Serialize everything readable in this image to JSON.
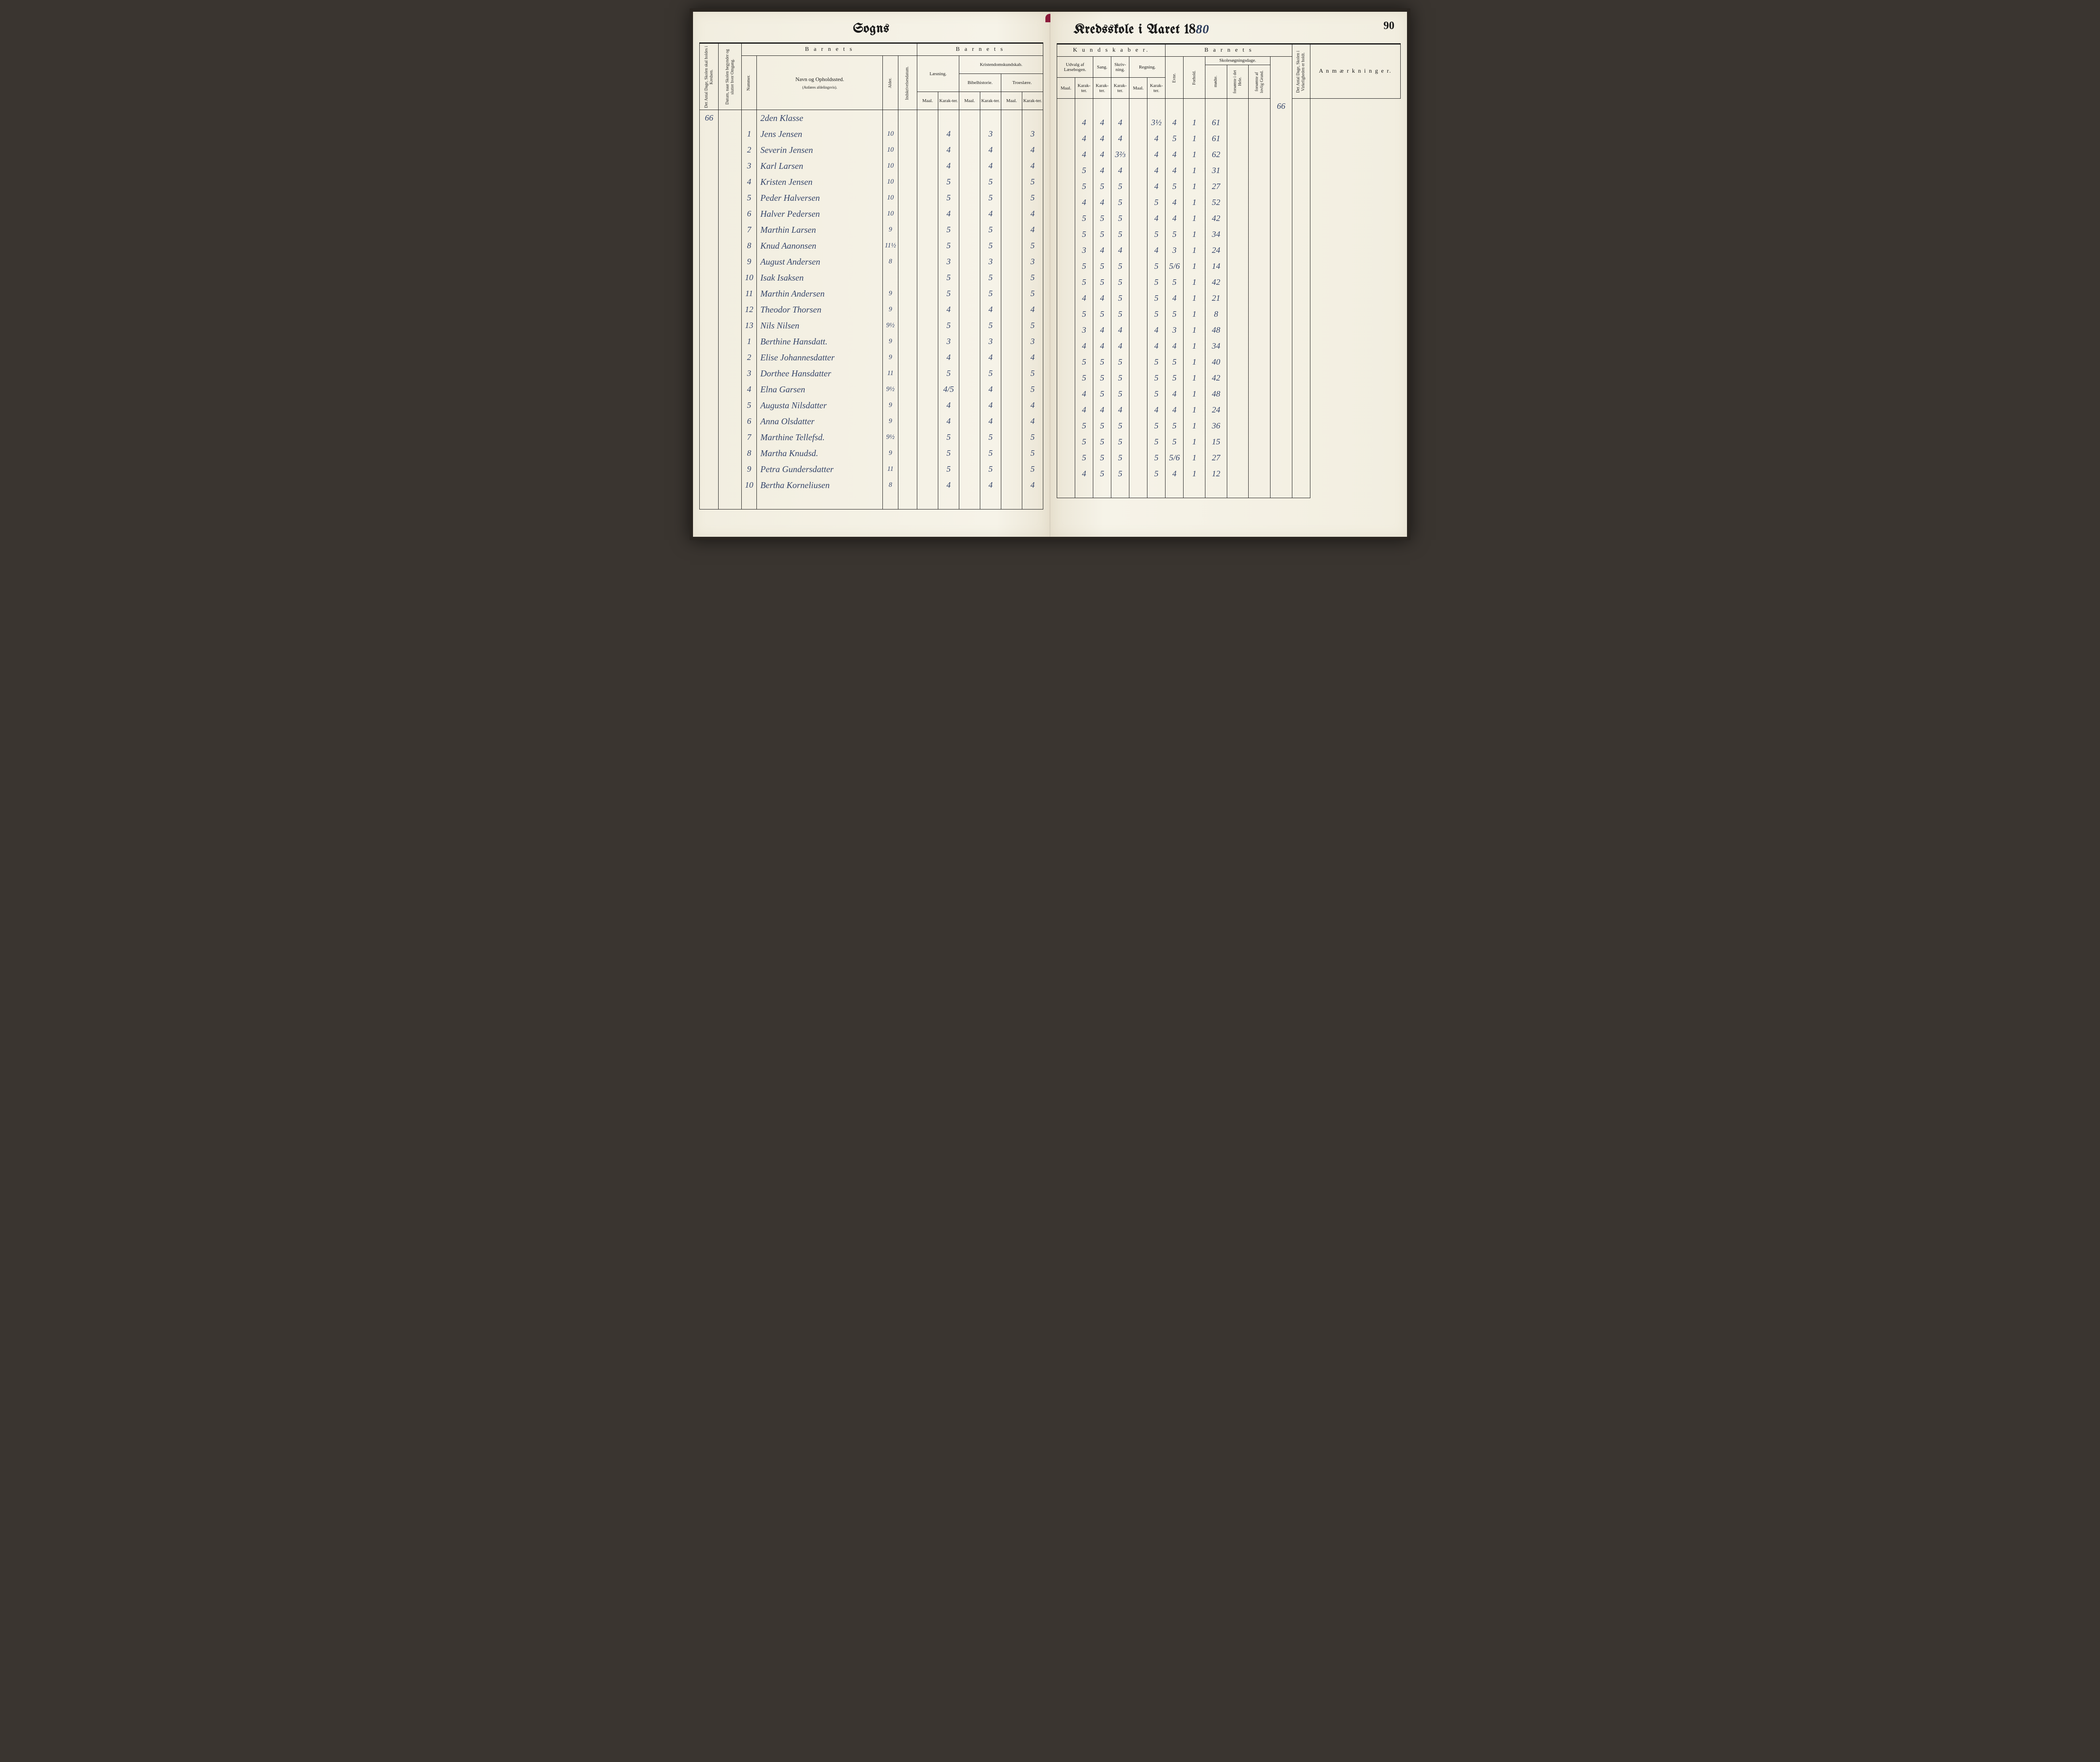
{
  "page_number": "90",
  "left_title": "Sogns",
  "right_title_prefix": "Kredsskole i Aaret 18",
  "right_title_year": "80",
  "headers": {
    "barnets": "B a r n e t s",
    "kundskaber": "K u n d s k a b e r.",
    "antal_dage": "Det Antal Dage, Skolen skal holdes i Kredsen.",
    "datum": "Datum, naar Skolen begynder og slutter hver Omgang.",
    "nummer": "Nummer.",
    "navn": "Navn og Opholdssted.",
    "navn_sub": "(Anføres afdelingsvis).",
    "alder": "Alder.",
    "indskrivelsesdatum": "Indskrivelsesdatum.",
    "laesning": "Læsning.",
    "kristendom": "Kristendomskundskab.",
    "bibelhistorie": "Bibelhistorie.",
    "troeslaere": "Troeslære.",
    "maal": "Maal.",
    "karakter": "Karak-ter.",
    "udvalg": "Udvalg af Læsebogen.",
    "sang": "Sang.",
    "skrivning": "Skriv-ning.",
    "regning": "Regning.",
    "evne": "Evne.",
    "forhold": "Forhold.",
    "skolesogningsdage": "Skolesøgningsdage.",
    "modte": "mødte.",
    "forsomte_hele": "forsømte i det Hele.",
    "forsomte_lovlig": "forsømte af lovlig Grund.",
    "antal_dage_holdt": "Det Antal Dage, Skolen i Virkeligheden er holdt.",
    "anmaerkninger": "A n m æ r k n i n g e r."
  },
  "klasse_header": "2den Klasse",
  "antal_dage_val": "66",
  "holdt_val": "66",
  "rows": [
    {
      "num": "1",
      "name": "Jens Jensen",
      "age": "10",
      "laes_m": "",
      "laes_k": "4",
      "bib_m": "",
      "bib_k": "3",
      "tro_m": "",
      "tro_k": "3",
      "udv_m": "",
      "udv_k": "4",
      "sang": "4",
      "skr": "4",
      "reg_m": "",
      "reg_k": "3½",
      "evne": "4",
      "forhold": "1",
      "modte": "61",
      "fors1": "",
      "fors2": ""
    },
    {
      "num": "2",
      "name": "Severin Jensen",
      "age": "10",
      "laes_m": "",
      "laes_k": "4",
      "bib_m": "",
      "bib_k": "4",
      "tro_m": "",
      "tro_k": "4",
      "udv_m": "",
      "udv_k": "4",
      "sang": "4",
      "skr": "4",
      "reg_m": "",
      "reg_k": "4",
      "evne": "5",
      "forhold": "1",
      "modte": "61",
      "fors1": "",
      "fors2": ""
    },
    {
      "num": "3",
      "name": "Karl Larsen",
      "age": "10",
      "laes_m": "",
      "laes_k": "4",
      "bib_m": "",
      "bib_k": "4",
      "tro_m": "",
      "tro_k": "4",
      "udv_m": "",
      "udv_k": "4",
      "sang": "4",
      "skr": "3⅔",
      "reg_m": "",
      "reg_k": "4",
      "evne": "4",
      "forhold": "1",
      "modte": "62",
      "fors1": "",
      "fors2": ""
    },
    {
      "num": "4",
      "name": "Kristen Jensen",
      "age": "10",
      "laes_m": "",
      "laes_k": "5",
      "bib_m": "",
      "bib_k": "5",
      "tro_m": "",
      "tro_k": "5",
      "udv_m": "",
      "udv_k": "5",
      "sang": "4",
      "skr": "4",
      "reg_m": "",
      "reg_k": "4",
      "evne": "4",
      "forhold": "1",
      "modte": "31",
      "fors1": "",
      "fors2": ""
    },
    {
      "num": "5",
      "name": "Peder Halversen",
      "age": "10",
      "laes_m": "",
      "laes_k": "5",
      "bib_m": "",
      "bib_k": "5",
      "tro_m": "",
      "tro_k": "5",
      "udv_m": "",
      "udv_k": "5",
      "sang": "5",
      "skr": "5",
      "reg_m": "",
      "reg_k": "4",
      "evne": "5",
      "forhold": "1",
      "modte": "27",
      "fors1": "",
      "fors2": ""
    },
    {
      "num": "6",
      "name": "Halver Pedersen",
      "age": "10",
      "laes_m": "",
      "laes_k": "4",
      "bib_m": "",
      "bib_k": "4",
      "tro_m": "",
      "tro_k": "4",
      "udv_m": "",
      "udv_k": "4",
      "sang": "4",
      "skr": "5",
      "reg_m": "",
      "reg_k": "5",
      "evne": "4",
      "forhold": "1",
      "modte": "52",
      "fors1": "",
      "fors2": ""
    },
    {
      "num": "7",
      "name": "Marthin Larsen",
      "age": "9",
      "laes_m": "",
      "laes_k": "5",
      "bib_m": "",
      "bib_k": "5",
      "tro_m": "",
      "tro_k": "4",
      "udv_m": "",
      "udv_k": "5",
      "sang": "5",
      "skr": "5",
      "reg_m": "",
      "reg_k": "4",
      "evne": "4",
      "forhold": "1",
      "modte": "42",
      "fors1": "",
      "fors2": ""
    },
    {
      "num": "8",
      "name": "Knud Aanonsen",
      "age": "11½",
      "laes_m": "",
      "laes_k": "5",
      "bib_m": "",
      "bib_k": "5",
      "tro_m": "",
      "tro_k": "5",
      "udv_m": "",
      "udv_k": "5",
      "sang": "5",
      "skr": "5",
      "reg_m": "",
      "reg_k": "5",
      "evne": "5",
      "forhold": "1",
      "modte": "34",
      "fors1": "",
      "fors2": ""
    },
    {
      "num": "9",
      "name": "August Andersen",
      "age": "8",
      "laes_m": "",
      "laes_k": "3",
      "bib_m": "",
      "bib_k": "3",
      "tro_m": "",
      "tro_k": "3",
      "udv_m": "",
      "udv_k": "3",
      "sang": "4",
      "skr": "4",
      "reg_m": "",
      "reg_k": "4",
      "evne": "3",
      "forhold": "1",
      "modte": "24",
      "fors1": "",
      "fors2": ""
    },
    {
      "num": "10",
      "name": "Isak Isaksen",
      "age": "",
      "laes_m": "",
      "laes_k": "5",
      "bib_m": "",
      "bib_k": "5",
      "tro_m": "",
      "tro_k": "5",
      "udv_m": "",
      "udv_k": "5",
      "sang": "5",
      "skr": "5",
      "reg_m": "",
      "reg_k": "5",
      "evne": "5/6",
      "forhold": "1",
      "modte": "14",
      "fors1": "",
      "fors2": ""
    },
    {
      "num": "11",
      "name": "Marthin Andersen",
      "age": "9",
      "laes_m": "",
      "laes_k": "5",
      "bib_m": "",
      "bib_k": "5",
      "tro_m": "",
      "tro_k": "5",
      "udv_m": "",
      "udv_k": "5",
      "sang": "5",
      "skr": "5",
      "reg_m": "",
      "reg_k": "5",
      "evne": "5",
      "forhold": "1",
      "modte": "42",
      "fors1": "",
      "fors2": ""
    },
    {
      "num": "12",
      "name": "Theodor Thorsen",
      "age": "9",
      "laes_m": "",
      "laes_k": "4",
      "bib_m": "",
      "bib_k": "4",
      "tro_m": "",
      "tro_k": "4",
      "udv_m": "",
      "udv_k": "4",
      "sang": "4",
      "skr": "5",
      "reg_m": "",
      "reg_k": "5",
      "evne": "4",
      "forhold": "1",
      "modte": "21",
      "fors1": "",
      "fors2": ""
    },
    {
      "num": "13",
      "name": "Nils Nilsen",
      "age": "9½",
      "laes_m": "",
      "laes_k": "5",
      "bib_m": "",
      "bib_k": "5",
      "tro_m": "",
      "tro_k": "5",
      "udv_m": "",
      "udv_k": "5",
      "sang": "5",
      "skr": "5",
      "reg_m": "",
      "reg_k": "5",
      "evne": "5",
      "forhold": "1",
      "modte": "8",
      "fors1": "",
      "fors2": ""
    },
    {
      "num": "1",
      "name": "Berthine Hansdatt.",
      "age": "9",
      "laes_m": "",
      "laes_k": "3",
      "bib_m": "",
      "bib_k": "3",
      "tro_m": "",
      "tro_k": "3",
      "udv_m": "",
      "udv_k": "3",
      "sang": "4",
      "skr": "4",
      "reg_m": "",
      "reg_k": "4",
      "evne": "3",
      "forhold": "1",
      "modte": "48",
      "fors1": "",
      "fors2": ""
    },
    {
      "num": "2",
      "name": "Elise Johannesdatter",
      "age": "9",
      "laes_m": "",
      "laes_k": "4",
      "bib_m": "",
      "bib_k": "4",
      "tro_m": "",
      "tro_k": "4",
      "udv_m": "",
      "udv_k": "4",
      "sang": "4",
      "skr": "4",
      "reg_m": "",
      "reg_k": "4",
      "evne": "4",
      "forhold": "1",
      "modte": "34",
      "fors1": "",
      "fors2": ""
    },
    {
      "num": "3",
      "name": "Dorthee Hansdatter",
      "age": "11",
      "laes_m": "",
      "laes_k": "5",
      "bib_m": "",
      "bib_k": "5",
      "tro_m": "",
      "tro_k": "5",
      "udv_m": "",
      "udv_k": "5",
      "sang": "5",
      "skr": "5",
      "reg_m": "",
      "reg_k": "5",
      "evne": "5",
      "forhold": "1",
      "modte": "40",
      "fors1": "",
      "fors2": ""
    },
    {
      "num": "4",
      "name": "Elna Garsen",
      "age": "9½",
      "laes_m": "",
      "laes_k": "4/5",
      "bib_m": "",
      "bib_k": "4",
      "tro_m": "",
      "tro_k": "5",
      "udv_m": "",
      "udv_k": "5",
      "sang": "5",
      "skr": "5",
      "reg_m": "",
      "reg_k": "5",
      "evne": "5",
      "forhold": "1",
      "modte": "42",
      "fors1": "",
      "fors2": ""
    },
    {
      "num": "5",
      "name": "Augusta Nilsdatter",
      "age": "9",
      "laes_m": "",
      "laes_k": "4",
      "bib_m": "",
      "bib_k": "4",
      "tro_m": "",
      "tro_k": "4",
      "udv_m": "",
      "udv_k": "4",
      "sang": "5",
      "skr": "5",
      "reg_m": "",
      "reg_k": "5",
      "evne": "4",
      "forhold": "1",
      "modte": "48",
      "fors1": "",
      "fors2": ""
    },
    {
      "num": "6",
      "name": "Anna Olsdatter",
      "age": "9",
      "laes_m": "",
      "laes_k": "4",
      "bib_m": "",
      "bib_k": "4",
      "tro_m": "",
      "tro_k": "4",
      "udv_m": "",
      "udv_k": "4",
      "sang": "4",
      "skr": "4",
      "reg_m": "",
      "reg_k": "4",
      "evne": "4",
      "forhold": "1",
      "modte": "24",
      "fors1": "",
      "fors2": ""
    },
    {
      "num": "7",
      "name": "Marthine Tellefsd.",
      "age": "9½",
      "laes_m": "",
      "laes_k": "5",
      "bib_m": "",
      "bib_k": "5",
      "tro_m": "",
      "tro_k": "5",
      "udv_m": "",
      "udv_k": "5",
      "sang": "5",
      "skr": "5",
      "reg_m": "",
      "reg_k": "5",
      "evne": "5",
      "forhold": "1",
      "modte": "36",
      "fors1": "",
      "fors2": ""
    },
    {
      "num": "8",
      "name": "Martha Knudsd.",
      "age": "9",
      "laes_m": "",
      "laes_k": "5",
      "bib_m": "",
      "bib_k": "5",
      "tro_m": "",
      "tro_k": "5",
      "udv_m": "",
      "udv_k": "5",
      "sang": "5",
      "skr": "5",
      "reg_m": "",
      "reg_k": "5",
      "evne": "5",
      "forhold": "1",
      "modte": "15",
      "fors1": "",
      "fors2": ""
    },
    {
      "num": "9",
      "name": "Petra Gundersdatter",
      "age": "11",
      "laes_m": "",
      "laes_k": "5",
      "bib_m": "",
      "bib_k": "5",
      "tro_m": "",
      "tro_k": "5",
      "udv_m": "",
      "udv_k": "5",
      "sang": "5",
      "skr": "5",
      "reg_m": "",
      "reg_k": "5",
      "evne": "5/6",
      "forhold": "1",
      "modte": "27",
      "fors1": "",
      "fors2": ""
    },
    {
      "num": "10",
      "name": "Bertha Korneliusen",
      "age": "8",
      "laes_m": "",
      "laes_k": "4",
      "bib_m": "",
      "bib_k": "4",
      "tro_m": "",
      "tro_k": "4",
      "udv_m": "",
      "udv_k": "4",
      "sang": "5",
      "skr": "5",
      "reg_m": "",
      "reg_k": "5",
      "evne": "4",
      "forhold": "1",
      "modte": "12",
      "fors1": "",
      "fors2": ""
    }
  ],
  "colors": {
    "ink": "#35456a",
    "print": "#1a1a1a",
    "paper": "#f4f0e4"
  }
}
